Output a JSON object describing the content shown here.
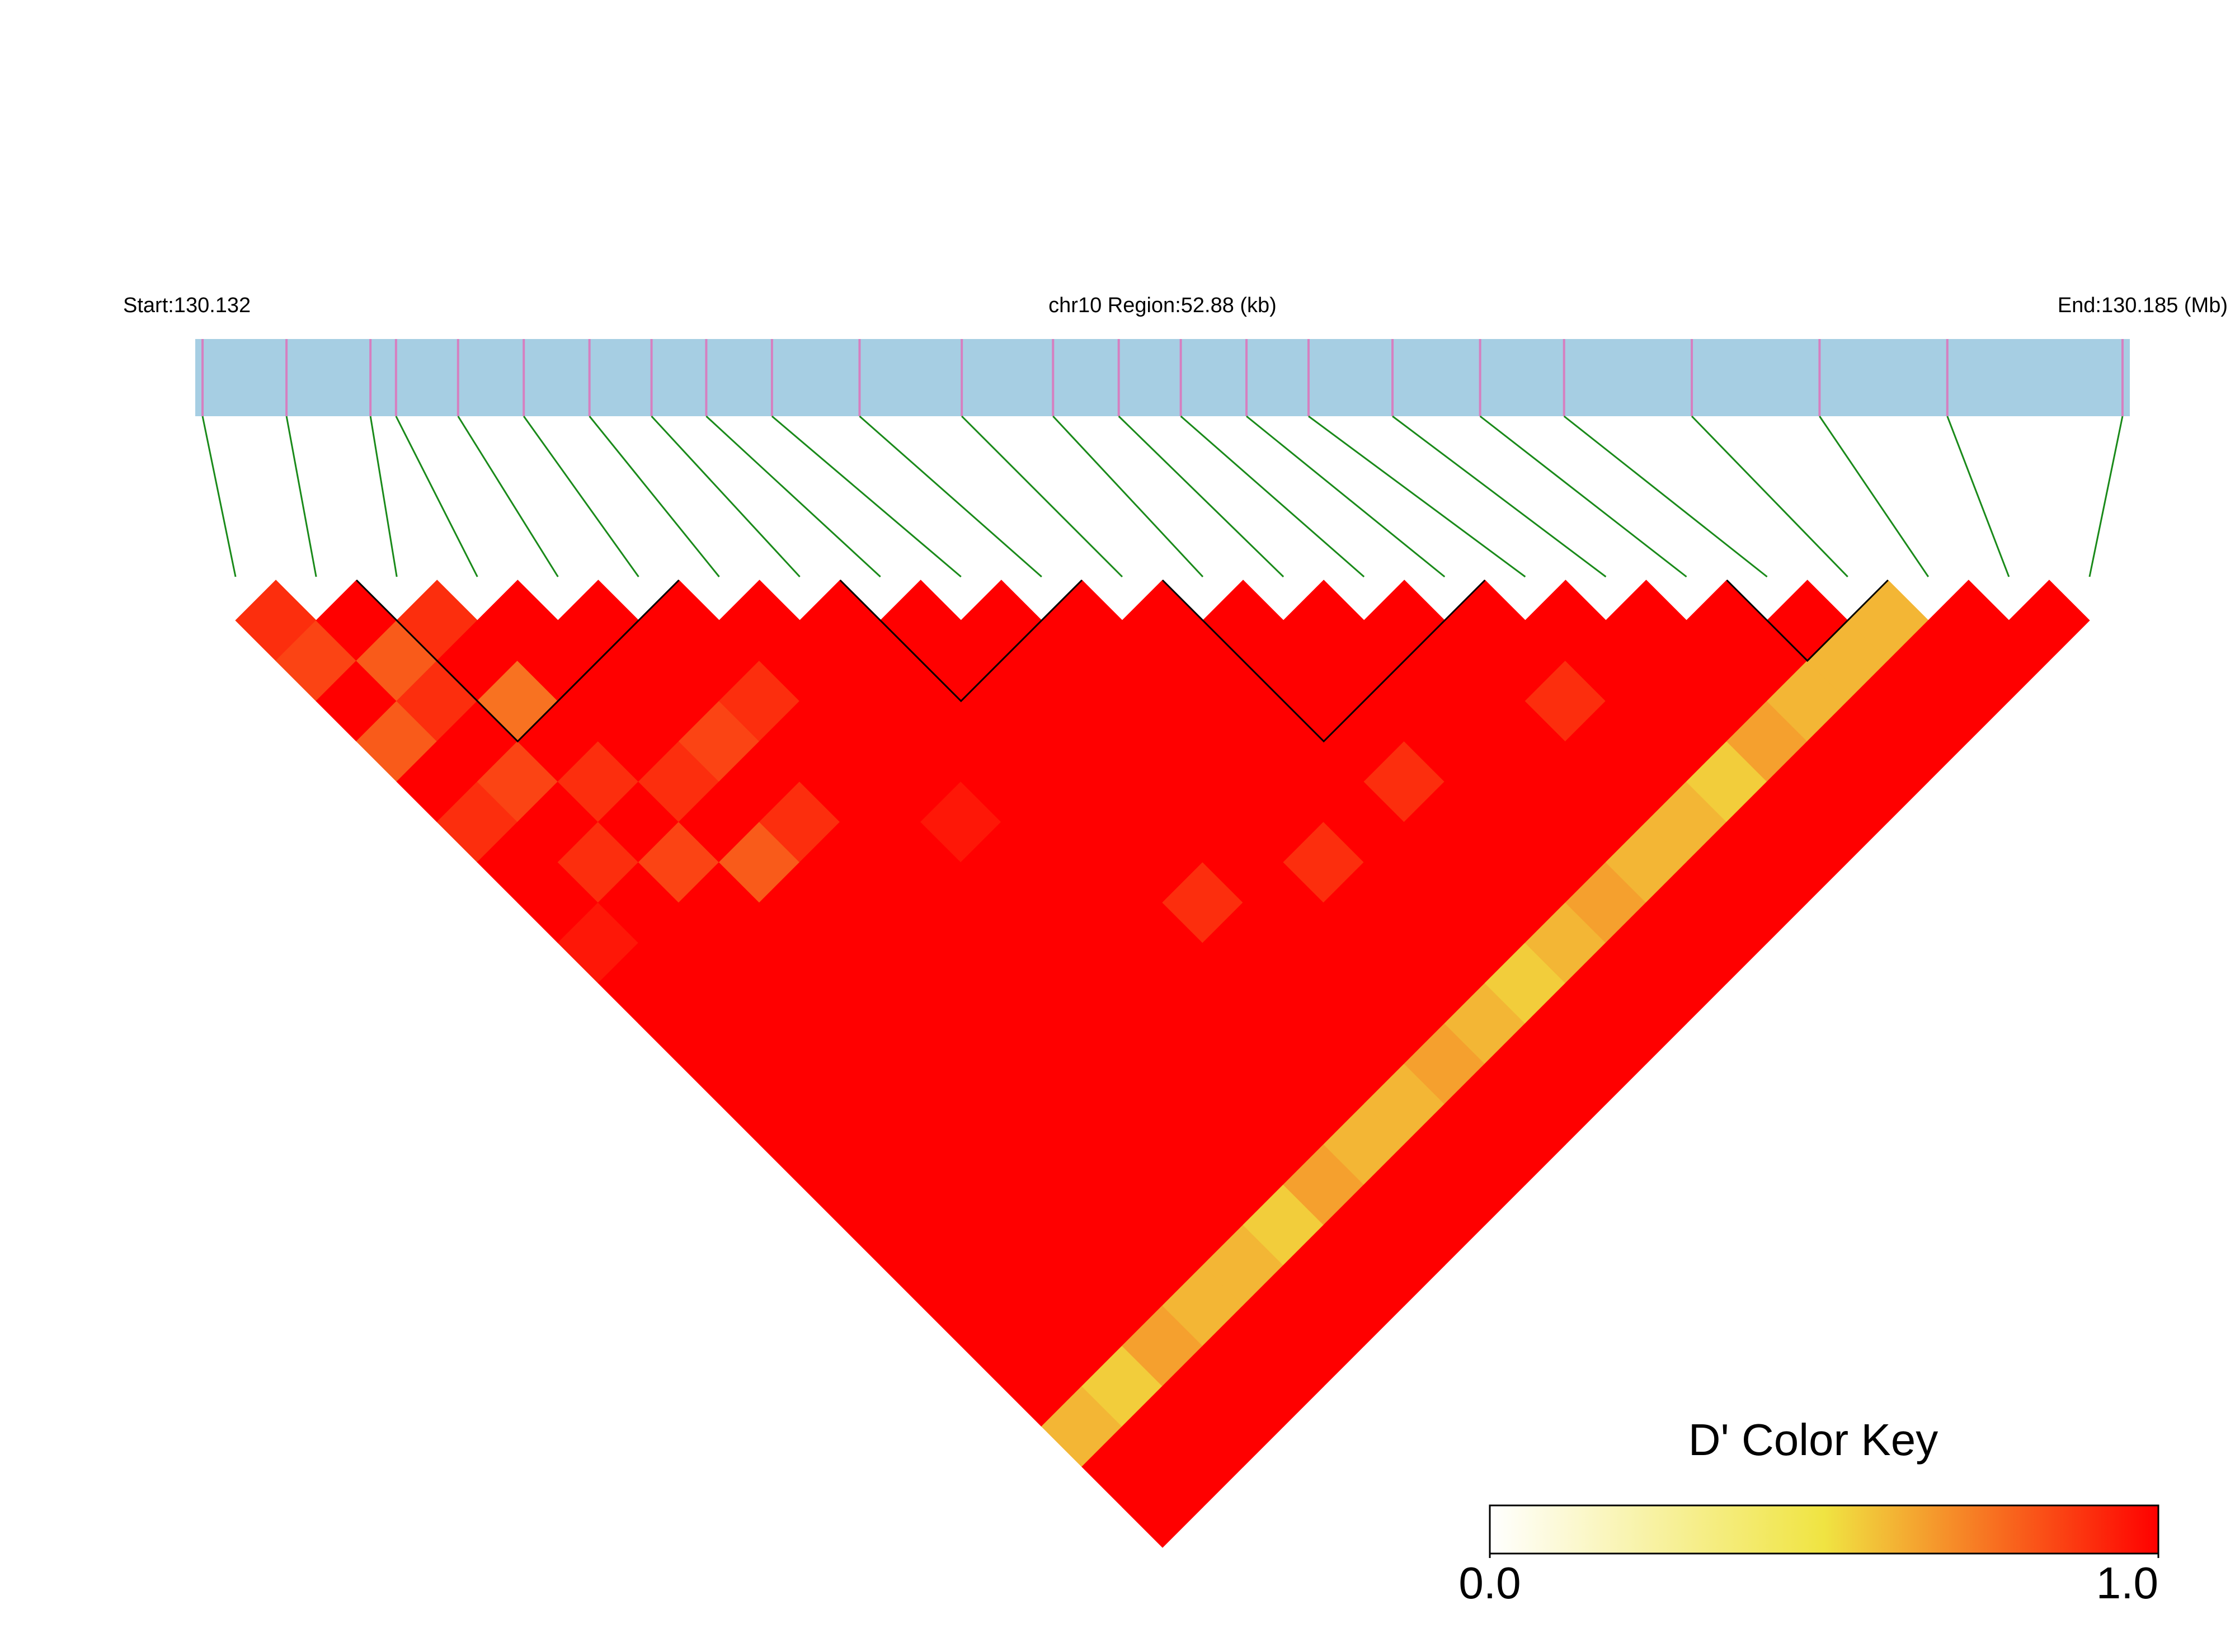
{
  "chart_data": {
    "type": "ld_heatmap",
    "start_label": "Start:130.132",
    "region_label": "chr10 Region:52.88 (kb)",
    "end_label": "End:130.185 (Mb)",
    "key_title": "D' Color Key",
    "xlim": [
      130.132,
      130.185
    ],
    "snp_positions": [
      130.1322,
      130.1345,
      130.1368,
      130.1375,
      130.1392,
      130.141,
      130.1428,
      130.1445,
      130.146,
      130.1478,
      130.1502,
      130.153,
      130.1555,
      130.1573,
      130.159,
      130.1608,
      130.1625,
      130.1648,
      130.1672,
      130.1695,
      130.173,
      130.1765,
      130.18,
      130.1848
    ],
    "dprime": [
      [
        0.9,
        0.85,
        1,
        0.8,
        1,
        0.9,
        1,
        1,
        0.95,
        1,
        1,
        1,
        1,
        1,
        1,
        1,
        1,
        1,
        1,
        1,
        0.6,
        1,
        1
      ],
      [
        1,
        0.8,
        0.9,
        1,
        0.85,
        1,
        0.9,
        1,
        1,
        1,
        1,
        1,
        1,
        1,
        1,
        1,
        1,
        1,
        1,
        0.55,
        1,
        1
      ],
      [
        0.9,
        1,
        0.75,
        1,
        0.9,
        1,
        0.85,
        1,
        1,
        1,
        1,
        1,
        1,
        1,
        1,
        1,
        1,
        1,
        0.65,
        1,
        1
      ],
      [
        1,
        1,
        1,
        1,
        0.9,
        1,
        0.8,
        1,
        1,
        1,
        1,
        1,
        1,
        1,
        1,
        1,
        1,
        0.6,
        1,
        1
      ],
      [
        1,
        1,
        1,
        0.85,
        1,
        0.9,
        1,
        1,
        1,
        1,
        1,
        1,
        1,
        1,
        1,
        1,
        0.6,
        1,
        1
      ],
      [
        1,
        1,
        0.9,
        1,
        1,
        1,
        1,
        1,
        1,
        1,
        1,
        1,
        1,
        1,
        1,
        0.55,
        1,
        1
      ],
      [
        1,
        1,
        1,
        1,
        1,
        0.95,
        1,
        1,
        1,
        1,
        1,
        1,
        1,
        1,
        0.65,
        1,
        1
      ],
      [
        1,
        1,
        1,
        1,
        1,
        1,
        1,
        1,
        1,
        1,
        1,
        1,
        1,
        0.6,
        1,
        1
      ],
      [
        1,
        1,
        1,
        1,
        1,
        1,
        1,
        0.9,
        1,
        1,
        1,
        1,
        0.6,
        1,
        1
      ],
      [
        1,
        1,
        1,
        1,
        1,
        1,
        1,
        1,
        1,
        1,
        1,
        0.65,
        1,
        1
      ],
      [
        1,
        1,
        1,
        1,
        1,
        1,
        0.9,
        1,
        1,
        1,
        0.6,
        1,
        1
      ],
      [
        1,
        1,
        1,
        1,
        1,
        1,
        1,
        1,
        1,
        0.55,
        1,
        1
      ],
      [
        1,
        1,
        1,
        1,
        0.9,
        1,
        1,
        1,
        0.6,
        1,
        1
      ],
      [
        1,
        1,
        1,
        1,
        1,
        1,
        1,
        0.65,
        1,
        1
      ],
      [
        1,
        1,
        1,
        1,
        1,
        1,
        0.6,
        1,
        1
      ],
      [
        1,
        1,
        0.9,
        1,
        1,
        0.6,
        1,
        1
      ],
      [
        1,
        1,
        1,
        1,
        0.55,
        1,
        1
      ],
      [
        1,
        1,
        1,
        0.65,
        1,
        1
      ],
      [
        1,
        1,
        0.6,
        1,
        1
      ],
      [
        1,
        0.6,
        1,
        1
      ],
      [
        0.6,
        1,
        1
      ],
      [
        1,
        1
      ],
      [
        1
      ]
    ],
    "blocks": [
      [
        2,
        5
      ],
      [
        8,
        10
      ],
      [
        12,
        15
      ],
      [
        19,
        20
      ]
    ],
    "bar_color": "#a6cee3",
    "snp_color": "#d67fc0",
    "link_color": "#1a8a1a",
    "colorscale": [
      "#ffffff",
      "#f0e442",
      "#ff0000"
    ],
    "colorlim": [
      0,
      1
    ],
    "colorticks": [
      {
        "value": 0,
        "label": "0.0"
      },
      {
        "value": 1,
        "label": "1.0"
      }
    ]
  }
}
